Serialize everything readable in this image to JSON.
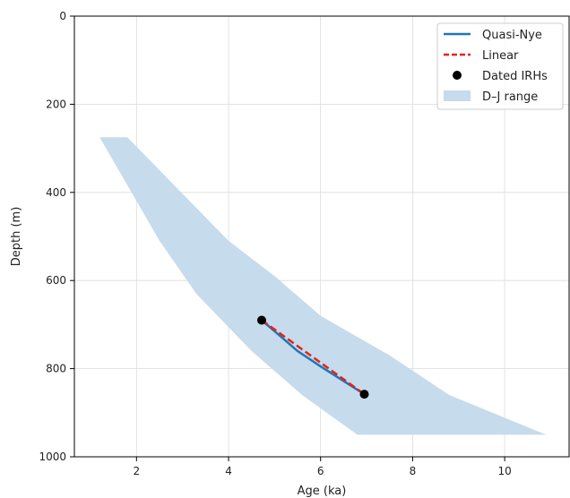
{
  "chart_data": {
    "type": "line",
    "xlabel": "Age (ka)",
    "ylabel": "Depth (m)",
    "xlim": [
      0.65,
      11.4
    ],
    "ylim": [
      1000,
      0
    ],
    "y_inverted": true,
    "xticks": [
      2,
      4,
      6,
      8,
      10
    ],
    "yticks": [
      0,
      200,
      400,
      600,
      800,
      1000
    ],
    "grid": true,
    "legend_placement": "top-right",
    "band": {
      "name": "D–J range",
      "color": "#c6dbec",
      "upper_edge": [
        [
          1.2,
          275
        ],
        [
          1.8,
          275
        ],
        [
          4.0,
          510
        ],
        [
          5.0,
          590
        ],
        [
          6.0,
          680
        ],
        [
          7.5,
          770
        ],
        [
          8.8,
          860
        ],
        [
          10.9,
          950
        ]
      ],
      "lower_edge": [
        [
          1.2,
          275
        ],
        [
          2.5,
          510
        ],
        [
          3.3,
          630
        ],
        [
          4.5,
          760
        ],
        [
          5.6,
          860
        ],
        [
          6.8,
          950
        ],
        [
          10.9,
          950
        ]
      ]
    },
    "series": [
      {
        "name": "Quasi-Nye",
        "style": "solid",
        "color": "#1f77b4",
        "points": [
          [
            4.72,
            690
          ],
          [
            5.0,
            715
          ],
          [
            5.5,
            760
          ],
          [
            6.0,
            795
          ],
          [
            6.5,
            828
          ],
          [
            6.95,
            858
          ]
        ]
      },
      {
        "name": "Linear",
        "style": "dashed",
        "color": "#e8211c",
        "points": [
          [
            4.72,
            690
          ],
          [
            6.95,
            858
          ]
        ]
      },
      {
        "name": "Dated IRHs",
        "style": "markers",
        "color": "#000000",
        "points": [
          [
            4.72,
            690
          ],
          [
            6.95,
            858
          ]
        ]
      }
    ]
  }
}
